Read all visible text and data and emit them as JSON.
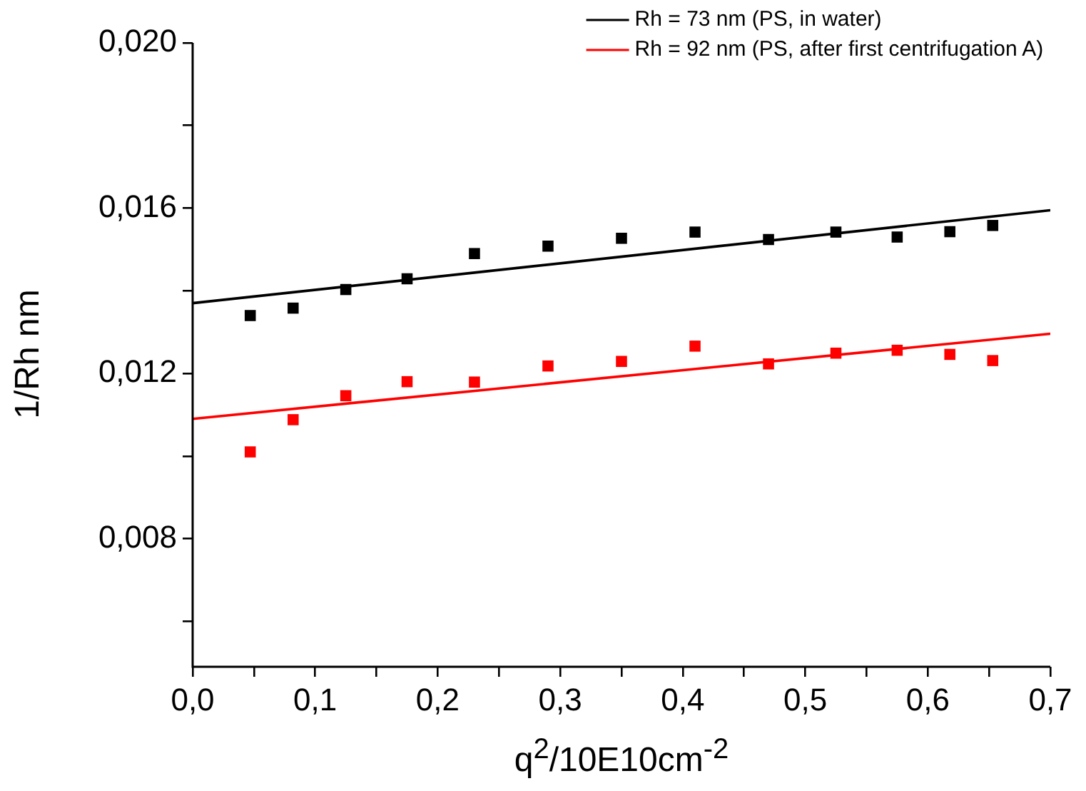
{
  "chart_data": {
    "type": "scatter",
    "xlabel": "q$^{2}$/10E10cm$^{-2}$",
    "ylabel": "1/Rh nm",
    "xlim": [
      0,
      0.7
    ],
    "ylim": [
      0.0049,
      0.02
    ],
    "xticks": [
      {
        "value": 0,
        "label": "0,0"
      },
      {
        "value": 0.05,
        "label": null
      },
      {
        "value": 0.1,
        "label": "0,1"
      },
      {
        "value": 0.15,
        "label": null
      },
      {
        "value": 0.2,
        "label": "0,2"
      },
      {
        "value": 0.25,
        "label": null
      },
      {
        "value": 0.3,
        "label": "0,3"
      },
      {
        "value": 0.35,
        "label": null
      },
      {
        "value": 0.4,
        "label": "0,4"
      },
      {
        "value": 0.45,
        "label": null
      },
      {
        "value": 0.5,
        "label": "0,5"
      },
      {
        "value": 0.55,
        "label": null
      },
      {
        "value": 0.6,
        "label": "0,6"
      },
      {
        "value": 0.65,
        "label": null
      },
      {
        "value": 0.7,
        "label": "0,7"
      }
    ],
    "yticks": [
      {
        "value": 0.006,
        "label": null
      },
      {
        "value": 0.008,
        "label": "0,008"
      },
      {
        "value": 0.01,
        "label": null
      },
      {
        "value": 0.012,
        "label": "0,012"
      },
      {
        "value": 0.014,
        "label": null
      },
      {
        "value": 0.016,
        "label": "0,016"
      },
      {
        "value": 0.018,
        "label": null
      },
      {
        "value": 0.02,
        "label": "0,020"
      }
    ],
    "grid": false,
    "legend": "top right",
    "series": [
      {
        "type": "scatter",
        "marker": "square",
        "color": "#000000",
        "x": [
          0.047,
          0.082,
          0.125,
          0.175,
          0.23,
          0.29,
          0.35,
          0.41,
          0.47,
          0.525,
          0.575,
          0.618,
          0.653
        ],
        "values": [
          0.0134,
          0.01358,
          0.01403,
          0.01429,
          0.0149,
          0.01508,
          0.01527,
          0.01542,
          0.01524,
          0.01542,
          0.0153,
          0.01543,
          0.01558
        ]
      },
      {
        "type": "scatter",
        "marker": "square",
        "color": "#ff0000",
        "x": [
          0.047,
          0.082,
          0.125,
          0.175,
          0.23,
          0.29,
          0.35,
          0.41,
          0.47,
          0.525,
          0.575,
          0.618,
          0.653
        ],
        "values": [
          0.0101,
          0.01088,
          0.01146,
          0.0118,
          0.01179,
          0.01218,
          0.01229,
          0.01266,
          0.01223,
          0.01249,
          0.01256,
          0.01246,
          0.01231
        ]
      },
      {
        "type": "line",
        "name": "Rh = 73 nm (PS, in water)",
        "color": "#000000",
        "x": [
          0,
          0.7
        ],
        "values": [
          0.0137,
          0.01595
        ]
      },
      {
        "type": "line",
        "name": "Rh = 92 nm (PS, after first centrifugation A)",
        "color": "#ff0000",
        "x": [
          0,
          0.7
        ],
        "values": [
          0.0109,
          0.01296
        ]
      }
    ]
  }
}
